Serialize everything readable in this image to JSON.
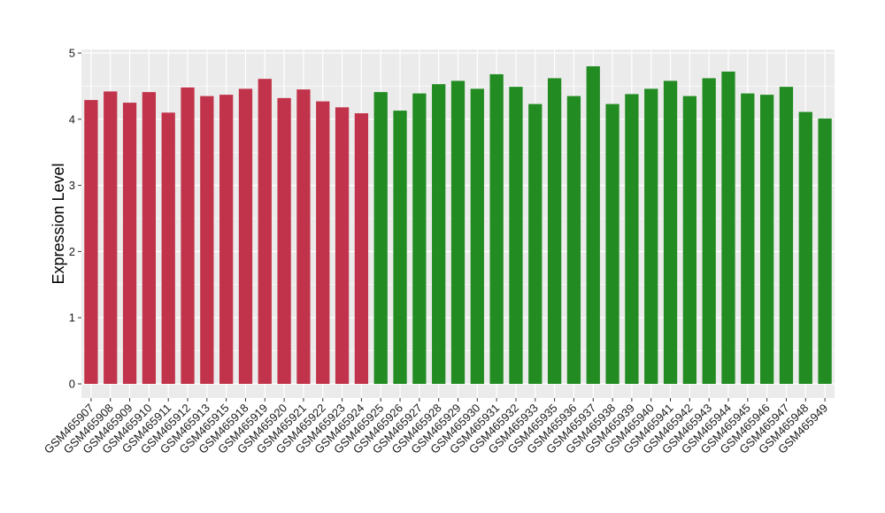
{
  "chart_data": {
    "type": "bar",
    "title": "",
    "xlabel": "",
    "ylabel": "Expression Level",
    "ylim": [
      0,
      5
    ],
    "yticks": [
      0,
      1,
      2,
      3,
      4,
      5
    ],
    "grid": true,
    "legend": "none",
    "colors": {
      "group1": "#c1334a",
      "group2": "#228b22",
      "panel": "#ebebeb",
      "grid": "#ffffff"
    },
    "categories": [
      "GSM465907",
      "GSM465908",
      "GSM465909",
      "GSM465910",
      "GSM465911",
      "GSM465912",
      "GSM465913",
      "GSM465915",
      "GSM465918",
      "GSM465919",
      "GSM465920",
      "GSM465921",
      "GSM465922",
      "GSM465923",
      "GSM465924",
      "GSM465925",
      "GSM465926",
      "GSM465927",
      "GSM465928",
      "GSM465929",
      "GSM465930",
      "GSM465931",
      "GSM465932",
      "GSM465933",
      "GSM465935",
      "GSM465936",
      "GSM465937",
      "GSM465938",
      "GSM465939",
      "GSM465940",
      "GSM465941",
      "GSM465942",
      "GSM465943",
      "GSM465944",
      "GSM465945",
      "GSM465946",
      "GSM465947",
      "GSM465948",
      "GSM465949"
    ],
    "values": [
      4.29,
      4.42,
      4.25,
      4.41,
      4.1,
      4.48,
      4.35,
      4.37,
      4.46,
      4.61,
      4.32,
      4.45,
      4.27,
      4.18,
      4.09,
      4.41,
      4.13,
      4.39,
      4.53,
      4.58,
      4.46,
      4.68,
      4.49,
      4.23,
      4.62,
      4.35,
      4.8,
      4.23,
      4.38,
      4.46,
      4.58,
      4.35,
      4.62,
      4.72,
      4.39,
      4.37,
      4.49,
      4.11,
      4.01
    ],
    "groups": [
      1,
      1,
      1,
      1,
      1,
      1,
      1,
      1,
      1,
      1,
      1,
      1,
      1,
      1,
      1,
      2,
      2,
      2,
      2,
      2,
      2,
      2,
      2,
      2,
      2,
      2,
      2,
      2,
      2,
      2,
      2,
      2,
      2,
      2,
      2,
      2,
      2,
      2,
      2
    ]
  }
}
